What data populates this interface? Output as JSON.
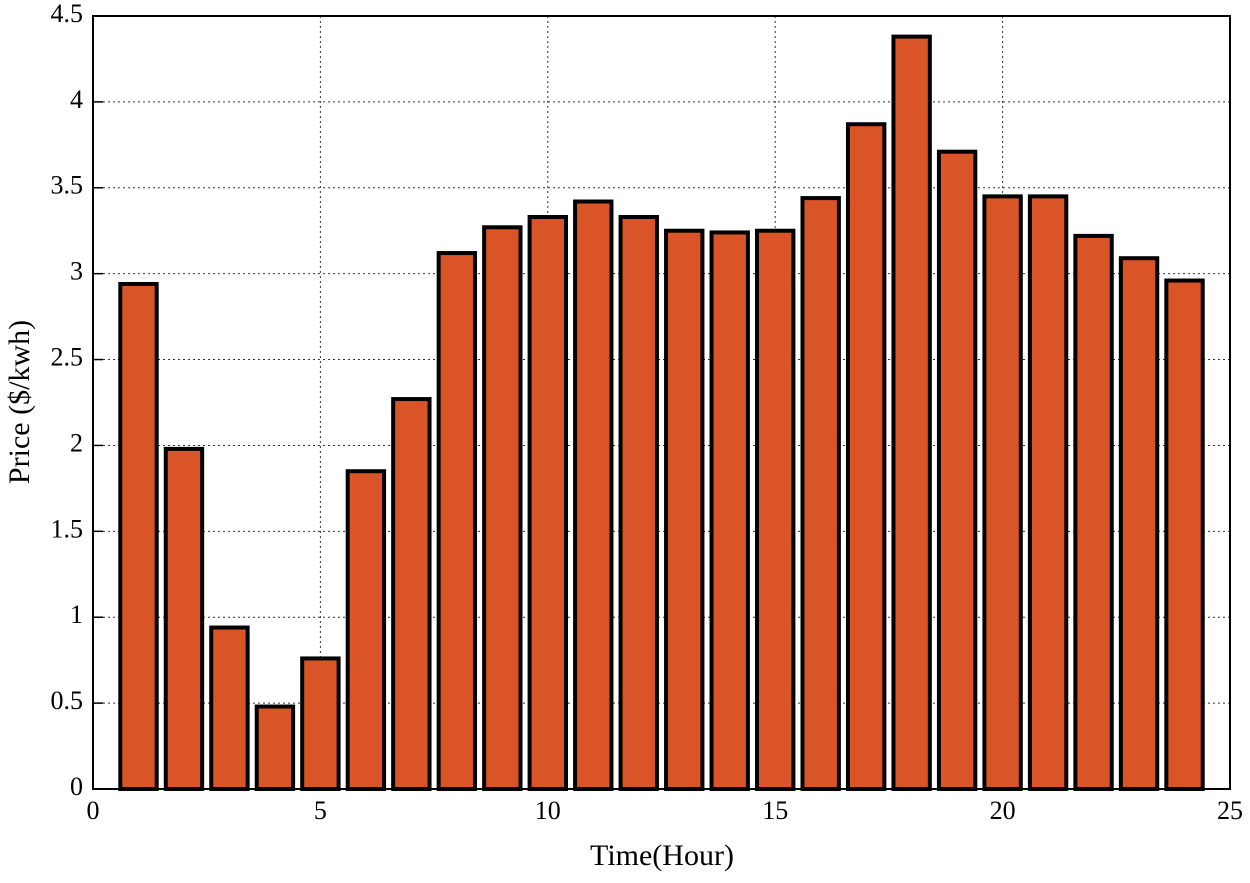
{
  "chart_data": {
    "type": "bar",
    "xlabel": "Time(Hour)",
    "ylabel": "Price ($/kwh)",
    "x": [
      1,
      2,
      3,
      4,
      5,
      6,
      7,
      8,
      9,
      10,
      11,
      12,
      13,
      14,
      15,
      16,
      17,
      18,
      19,
      20,
      21,
      22,
      23,
      24
    ],
    "values": [
      2.94,
      1.98,
      0.94,
      0.48,
      0.76,
      1.85,
      2.27,
      3.12,
      3.27,
      3.33,
      3.42,
      3.33,
      3.25,
      3.24,
      3.25,
      3.44,
      3.87,
      4.38,
      3.71,
      3.45,
      3.45,
      3.22,
      3.09,
      2.96
    ],
    "color": "#d95427",
    "xlim": [
      0,
      25
    ],
    "xticks": [
      0,
      5,
      10,
      15,
      20,
      25
    ],
    "ylim": [
      0,
      4.5
    ],
    "yticks": [
      0,
      0.5,
      1,
      1.5,
      2,
      2.5,
      3,
      3.5,
      4,
      4.5
    ],
    "grid": true
  }
}
